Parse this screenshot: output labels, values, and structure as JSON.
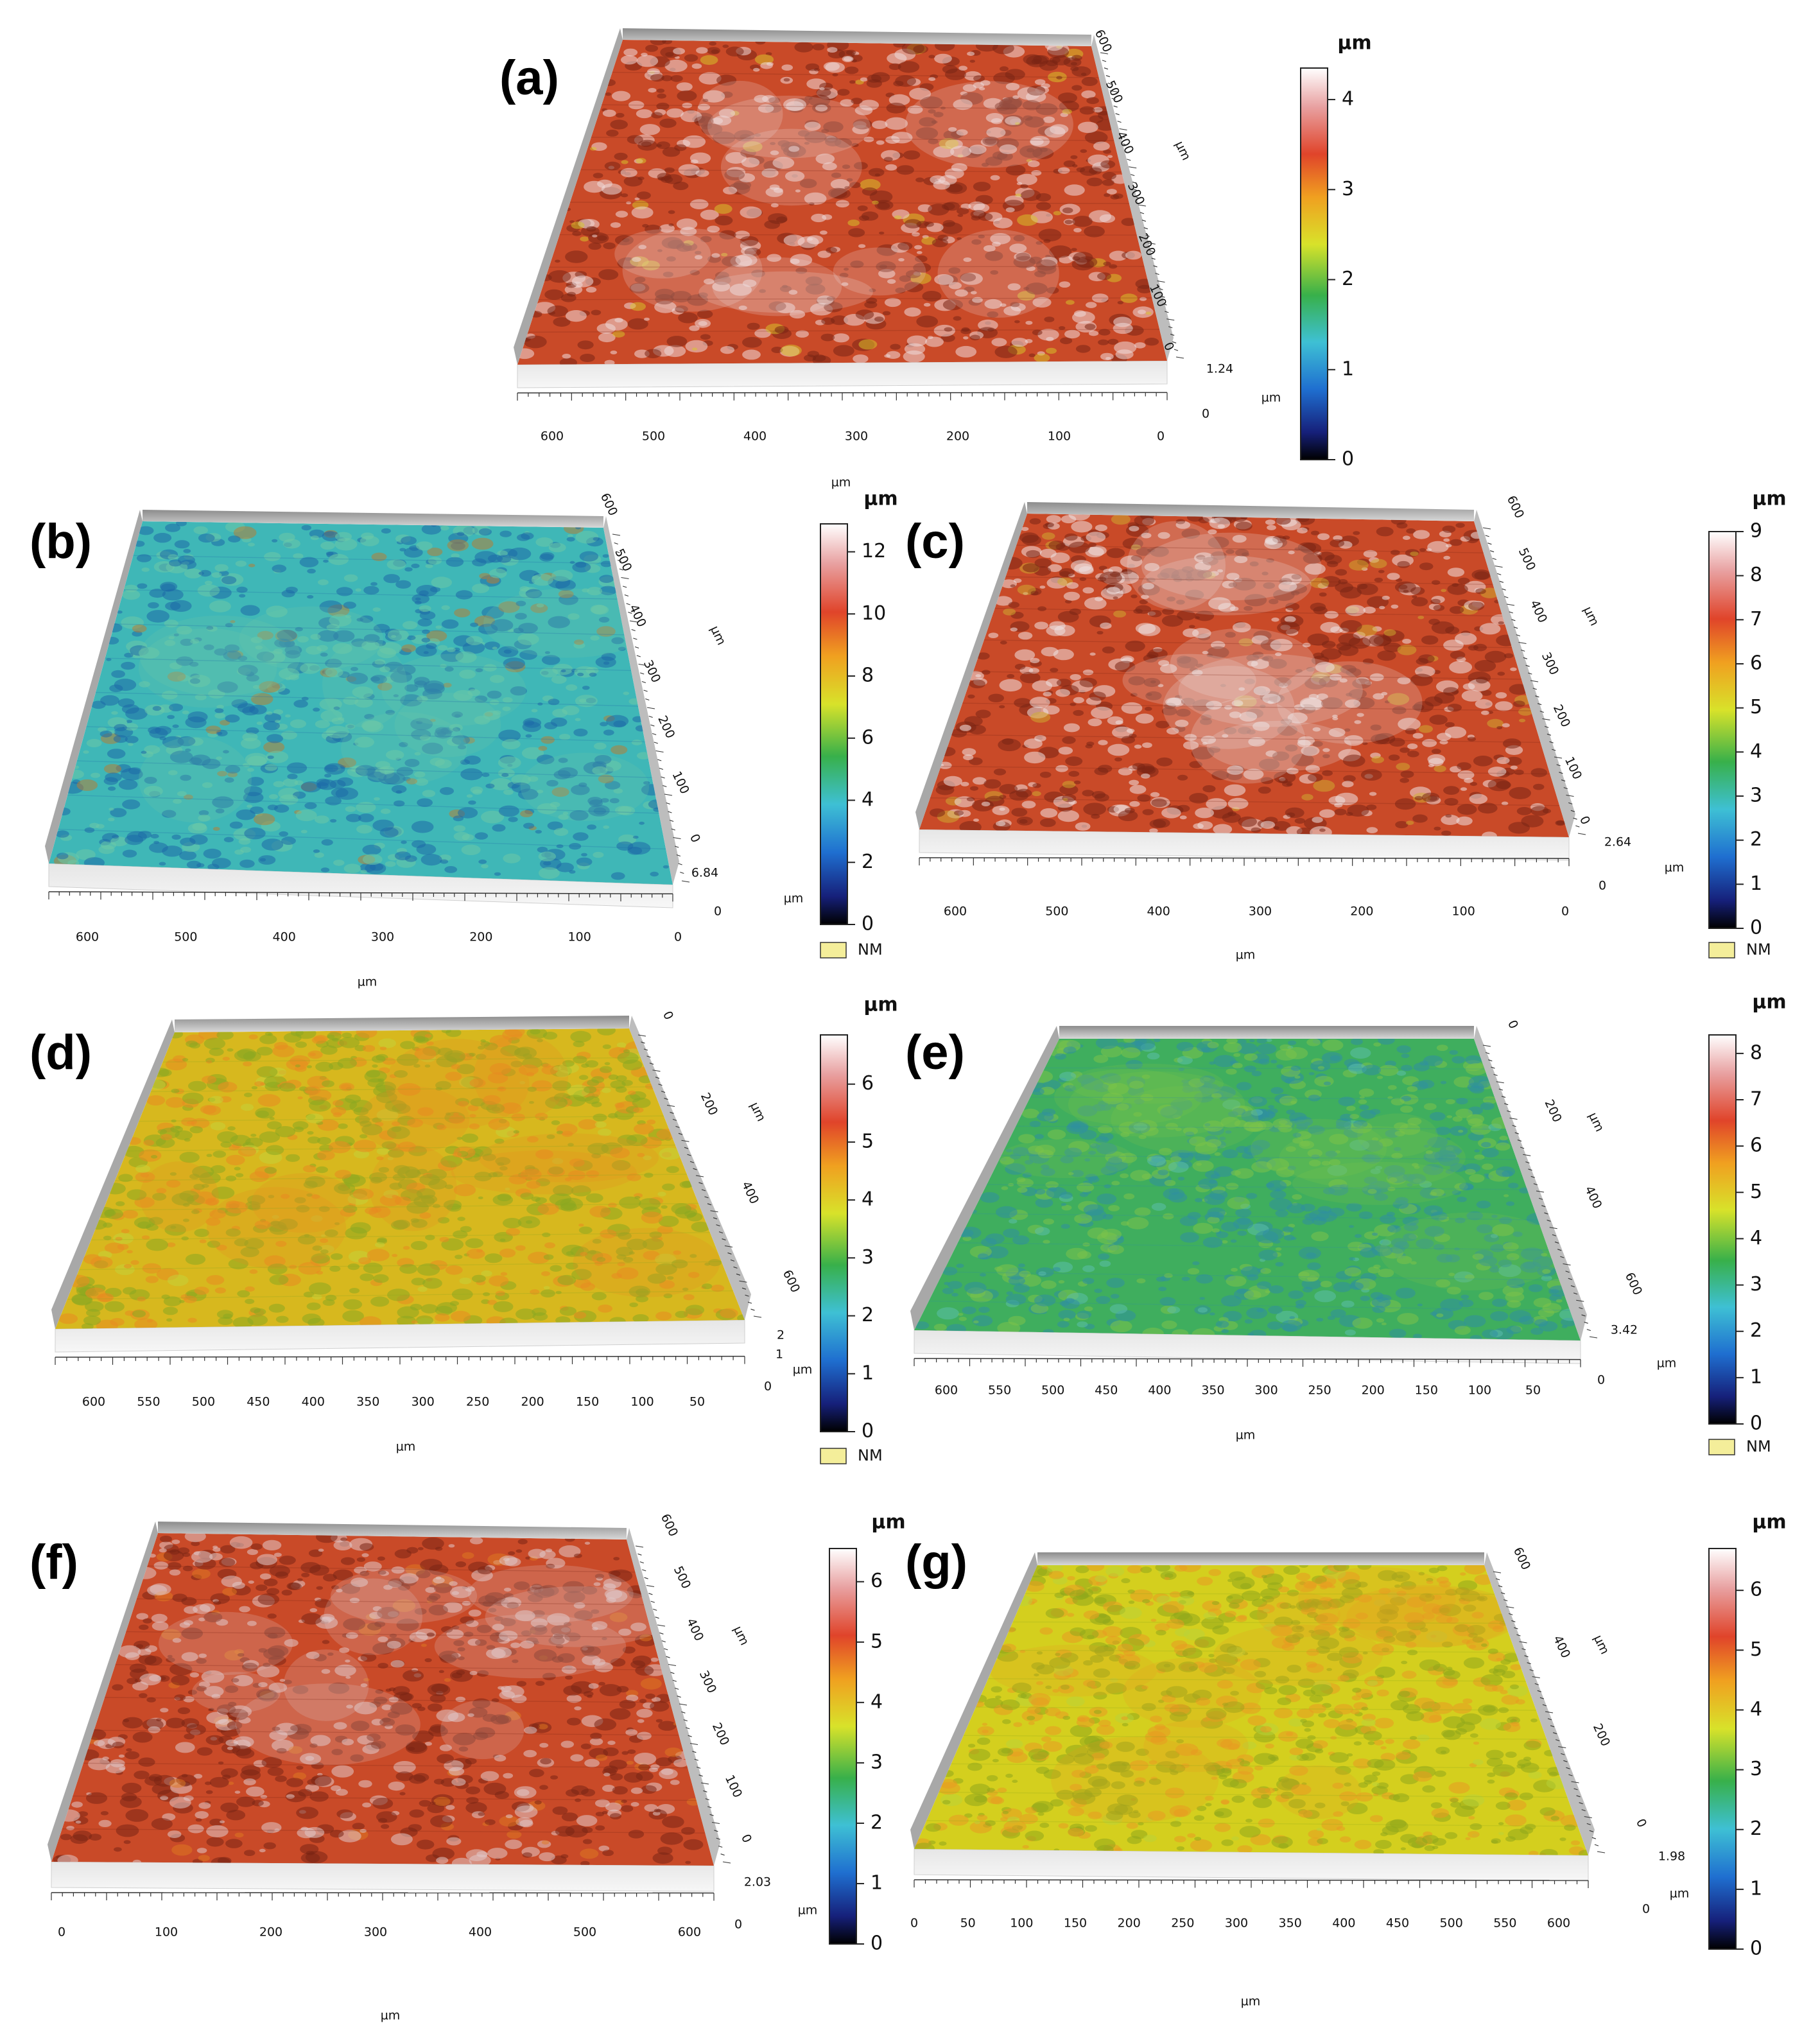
{
  "figure": {
    "panels": [
      {
        "id": "a",
        "label": "(a)",
        "surface": {
          "base": "#c94a28",
          "highlight": "#eedada",
          "shade": "#7a2414",
          "accent": "#d8c92a"
        },
        "ticks": {
          "front": [
            "600",
            "500",
            "400",
            "300",
            "200",
            "100",
            "0"
          ],
          "side": [
            "600",
            "500",
            "400",
            "300",
            "200",
            "100",
            "0"
          ],
          "side_unit": "µm",
          "z_max": "1.24",
          "z_zero": "0",
          "z_unit": "µm",
          "front_unit": ""
        },
        "colorbar": {
          "unit": "µm",
          "labels": [
            "0",
            "1",
            "2",
            "3",
            "4"
          ],
          "max": 4.35,
          "legend": ""
        }
      },
      {
        "id": "b",
        "label": "(b)",
        "surface": {
          "base": "#3fb7b7",
          "highlight": "#6cc8a8",
          "shade": "#1e6aa8",
          "accent": "#c07a2a"
        },
        "ticks": {
          "front": [
            "600",
            "500",
            "400",
            "300",
            "200",
            "100",
            "0"
          ],
          "side": [
            "600",
            "500",
            "400",
            "300",
            "200",
            "100",
            "0"
          ],
          "side_unit": "µm",
          "z_max": "6.84",
          "z_zero": "0",
          "z_unit": "µm",
          "front_unit": "µm"
        },
        "colorbar": {
          "unit": "µm",
          "labels": [
            "0",
            "2",
            "4",
            "6",
            "8",
            "10",
            "12"
          ],
          "max": 12.9,
          "legend": "NM",
          "top_unit": "µm"
        }
      },
      {
        "id": "c",
        "label": "(c)",
        "surface": {
          "base": "#c94a28",
          "highlight": "#efe2e2",
          "shade": "#7a2414",
          "accent": "#d0b030"
        },
        "ticks": {
          "front": [
            "600",
            "500",
            "400",
            "300",
            "200",
            "100",
            "0"
          ],
          "side": [
            "600",
            "500",
            "400",
            "300",
            "200",
            "100",
            "0"
          ],
          "side_unit": "µm",
          "z_max": "2.64",
          "z_zero": "0",
          "z_unit": "µm",
          "front_unit": "µm"
        },
        "colorbar": {
          "unit": "µm",
          "labels": [
            "0",
            "1",
            "2",
            "3",
            "4",
            "5",
            "6",
            "7",
            "8",
            "9"
          ],
          "max": 9.0,
          "legend": "NM"
        }
      },
      {
        "id": "d",
        "label": "(d)",
        "surface": {
          "base": "#d7b81e",
          "highlight": "#e88a20",
          "shade": "#8aa820",
          "accent": "#c4d43a"
        },
        "ticks": {
          "front": [
            "600",
            "550",
            "500",
            "450",
            "400",
            "350",
            "300",
            "250",
            "200",
            "150",
            "100",
            "50"
          ],
          "side": [
            "0",
            "200",
            "400",
            "600"
          ],
          "side_unit": "µm",
          "z_max": "2",
          "z_mid": "1",
          "z_zero": "0",
          "z_unit": "µm",
          "front_unit": "µm"
        },
        "colorbar": {
          "unit": "µm",
          "labels": [
            "0",
            "1",
            "2",
            "3",
            "4",
            "5",
            "6"
          ],
          "max": 6.85,
          "legend": "NM"
        }
      },
      {
        "id": "e",
        "label": "(e)",
        "surface": {
          "base": "#3fae5e",
          "highlight": "#7cc24a",
          "shade": "#2f8fa0",
          "accent": "#5ec0b0"
        },
        "ticks": {
          "front": [
            "600",
            "550",
            "500",
            "450",
            "400",
            "350",
            "300",
            "250",
            "200",
            "150",
            "100",
            "50"
          ],
          "side": [
            "0",
            "200",
            "400",
            "600"
          ],
          "side_unit": "µm",
          "z_max": "3.42",
          "z_zero": "0",
          "z_unit": "µm",
          "front_unit": "µm"
        },
        "colorbar": {
          "unit": "µm",
          "labels": [
            "0",
            "1",
            "2",
            "3",
            "4",
            "5",
            "6",
            "7",
            "8"
          ],
          "max": 8.4,
          "legend": "NM"
        }
      },
      {
        "id": "f",
        "label": "(f)",
        "surface": {
          "base": "#c94a28",
          "highlight": "#e0c8c8",
          "shade": "#7a2414",
          "accent": "#e07a20"
        },
        "ticks": {
          "front": [
            "0",
            "100",
            "200",
            "300",
            "400",
            "500",
            "600"
          ],
          "side": [
            "600",
            "500",
            "400",
            "300",
            "200",
            "100",
            "0"
          ],
          "side_unit": "µm",
          "z_max": "2.03",
          "z_zero": "0",
          "z_unit": "µm",
          "front_unit": "µm"
        },
        "colorbar": {
          "unit": "µm",
          "labels": [
            "0",
            "1",
            "2",
            "3",
            "4",
            "5",
            "6"
          ],
          "max": 6.55,
          "legend": ""
        }
      },
      {
        "id": "g",
        "label": "(g)",
        "surface": {
          "base": "#d4cf1e",
          "highlight": "#e89a22",
          "shade": "#8fa81c",
          "accent": "#b8d43a"
        },
        "ticks": {
          "front": [
            "0",
            "50",
            "100",
            "150",
            "200",
            "250",
            "300",
            "350",
            "400",
            "450",
            "500",
            "550",
            "600"
          ],
          "side": [
            "600",
            "400",
            "200",
            "0"
          ],
          "side_unit": "µm",
          "z_max": "1.98",
          "z_zero": "0",
          "z_unit": "µm",
          "front_unit": "µm"
        },
        "colorbar": {
          "unit": "µm",
          "labels": [
            "0",
            "1",
            "2",
            "3",
            "4",
            "5",
            "6"
          ],
          "max": 6.7,
          "legend": ""
        }
      }
    ]
  }
}
